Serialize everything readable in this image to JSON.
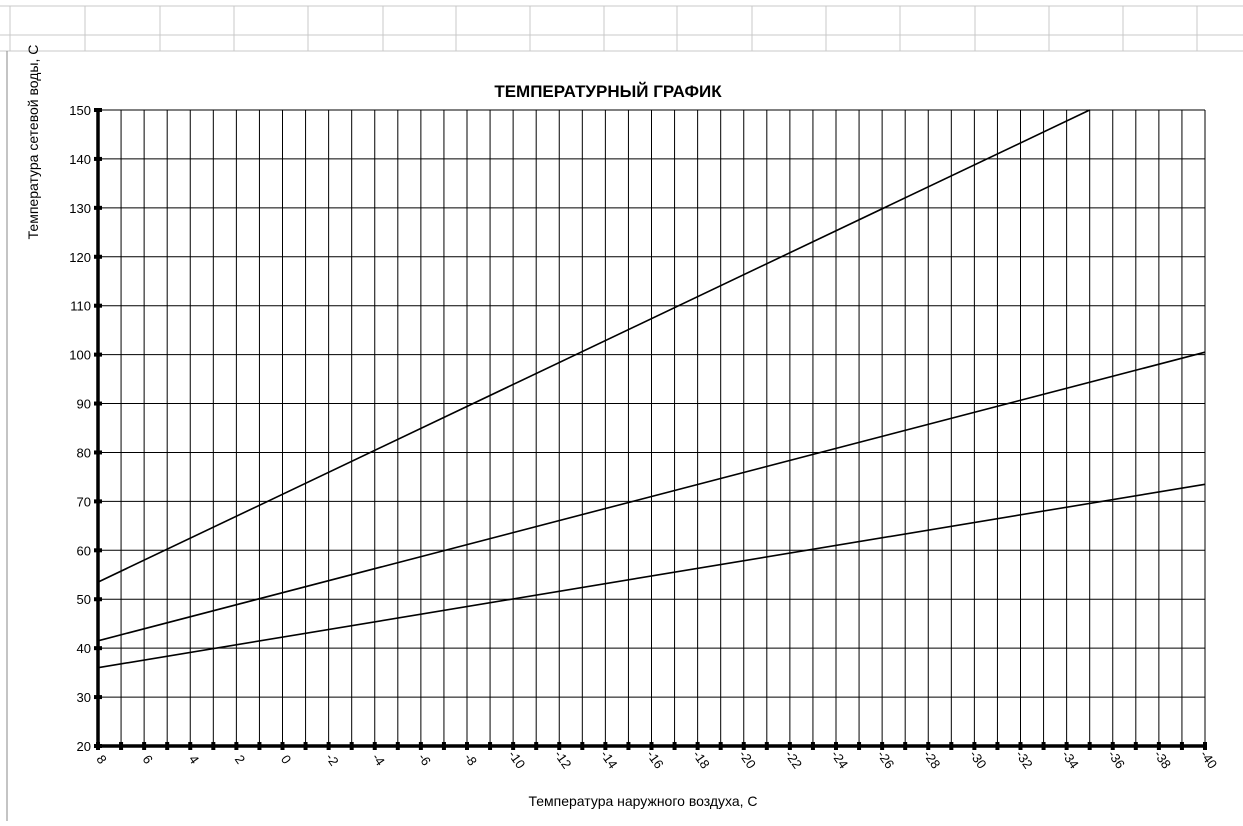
{
  "chart_data": {
    "type": "line",
    "title": "ТЕМПЕРАТУРНЫЙ  ГРАФИК",
    "xlabel": "Температура наружного воздуха, С",
    "ylabel": "Температура сетевой воды, С",
    "x_reversed": true,
    "xlim": [
      8,
      -40
    ],
    "ylim": [
      20,
      150
    ],
    "x_ticks": [
      8,
      6,
      4,
      2,
      0,
      -2,
      -4,
      -6,
      -8,
      -10,
      -12,
      -14,
      -16,
      -18,
      -20,
      -22,
      -24,
      -26,
      -28,
      -30,
      -32,
      -34,
      -36,
      -38,
      -40
    ],
    "y_ticks": [
      20,
      30,
      40,
      50,
      60,
      70,
      80,
      90,
      100,
      110,
      120,
      130,
      140,
      150
    ],
    "grid": true,
    "series": [
      {
        "x": [
          8,
          -35
        ],
        "y": [
          53.5,
          150
        ],
        "color": "#000000"
      },
      {
        "x": [
          8,
          -40
        ],
        "y": [
          41.5,
          100.5
        ],
        "color": "#000000"
      },
      {
        "x": [
          8,
          -40
        ],
        "y": [
          36,
          73.5
        ],
        "color": "#000000"
      }
    ]
  }
}
